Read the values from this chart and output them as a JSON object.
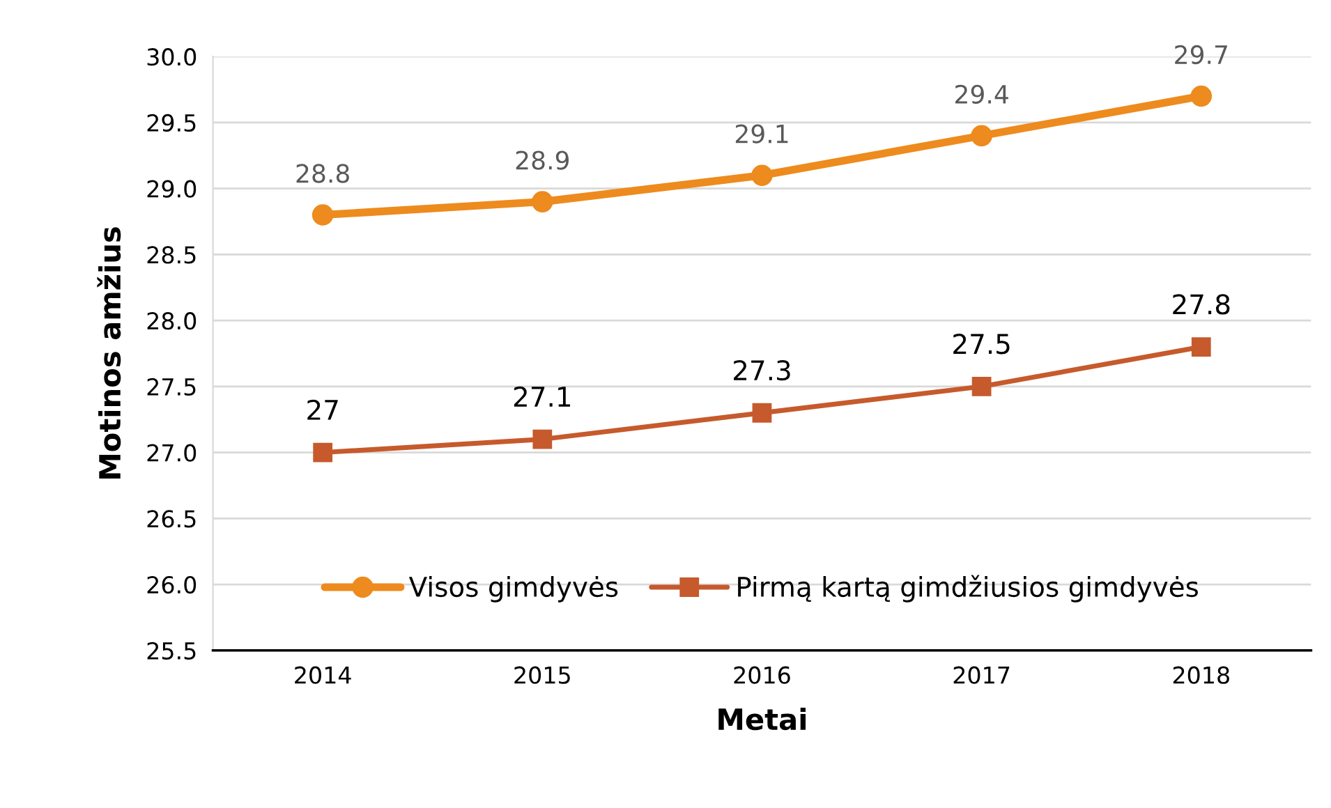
{
  "chart_data": {
    "type": "line",
    "xlabel": "Metai",
    "ylabel": "Motinos amžius",
    "categories": [
      "2014",
      "2015",
      "2016",
      "2017",
      "2018"
    ],
    "series": [
      {
        "name": "Visos gimdyvės",
        "color": "#ed8b1e",
        "marker": "circle",
        "values": [
          28.8,
          28.9,
          29.1,
          29.4,
          29.7
        ]
      },
      {
        "name": "Pirmą kartą gimdžiusios gimdyvės",
        "color": "#c65a2c",
        "marker": "square",
        "values": [
          27,
          27.1,
          27.3,
          27.5,
          27.8
        ]
      }
    ],
    "ylim": [
      25.5,
      30.0
    ],
    "yticks": [
      {
        "value": 25.5,
        "label": "25.5"
      },
      {
        "value": 26,
        "label": "26.0"
      },
      {
        "value": 26.5,
        "label": "26.5"
      },
      {
        "value": 27,
        "label": "27.0"
      },
      {
        "value": 27.5,
        "label": "27.5"
      },
      {
        "value": 28,
        "label": "28.0"
      },
      {
        "value": 28.5,
        "label": "28.5"
      },
      {
        "value": 29,
        "label": "29.0"
      },
      {
        "value": 29.5,
        "label": "29.5"
      },
      {
        "value": 30,
        "label": "30.0"
      }
    ],
    "grid": "y",
    "legend": "bottom",
    "data_labels": true,
    "line_style": "solid"
  }
}
